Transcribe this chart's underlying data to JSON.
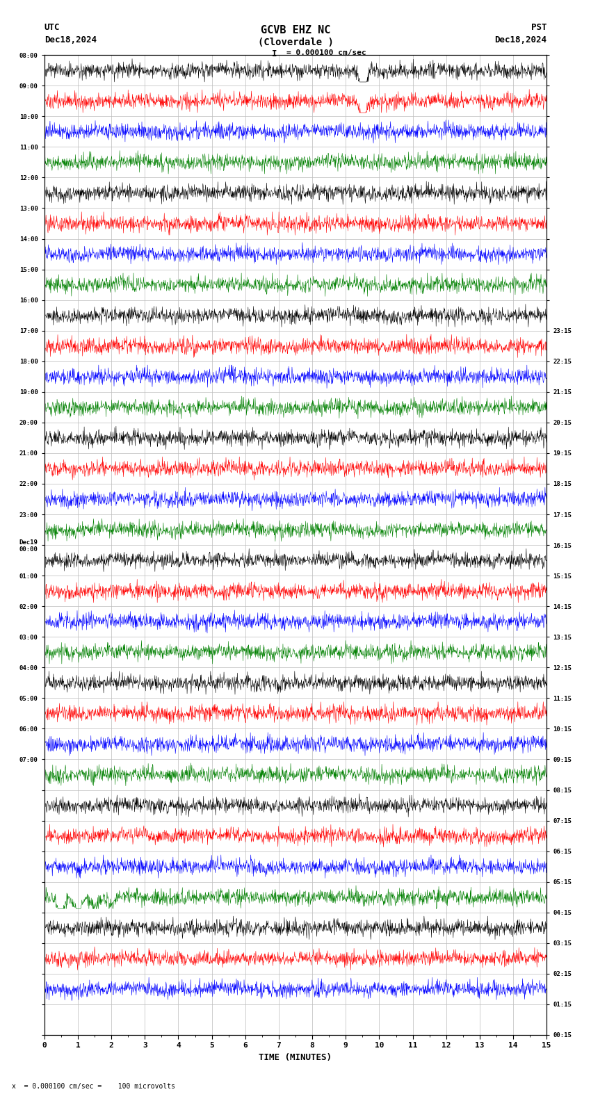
{
  "title_line1": "GCVB EHZ NC",
  "title_line2": "(Cloverdale )",
  "scale_text": "= 0.000100 cm/sec",
  "left_label": "UTC",
  "left_date": "Dec18,2024",
  "right_label": "PST",
  "right_date": "Dec18,2024",
  "xlabel": "TIME (MINUTES)",
  "bottom_annotation": "x  = 0.000100 cm/sec =    100 microvolts",
  "xmin": 0,
  "xmax": 15,
  "num_rows": 32,
  "left_times": [
    "08:00",
    "09:00",
    "10:00",
    "11:00",
    "12:00",
    "13:00",
    "14:00",
    "15:00",
    "16:00",
    "17:00",
    "18:00",
    "19:00",
    "20:00",
    "21:00",
    "22:00",
    "23:00",
    "Dec19\n00:00",
    "01:00",
    "02:00",
    "03:00",
    "04:00",
    "05:00",
    "06:00",
    "07:00",
    "",
    "",
    "",
    "",
    "",
    "",
    "",
    "",
    ""
  ],
  "right_times": [
    "00:15",
    "01:15",
    "02:15",
    "03:15",
    "04:15",
    "05:15",
    "06:15",
    "07:15",
    "08:15",
    "09:15",
    "10:15",
    "11:15",
    "12:15",
    "13:15",
    "14:15",
    "15:15",
    "16:15",
    "17:15",
    "18:15",
    "19:15",
    "20:15",
    "21:15",
    "22:15",
    "23:15",
    "",
    "",
    "",
    "",
    "",
    "",
    "",
    "",
    ""
  ],
  "trace_colors": [
    "black",
    "red",
    "blue",
    "green"
  ],
  "bg_color": "white",
  "grid_color": "#bbbbbb",
  "fig_width": 8.5,
  "fig_height": 15.84,
  "dpi": 100,
  "n_active_groups": 8,
  "dec19_row": 16
}
